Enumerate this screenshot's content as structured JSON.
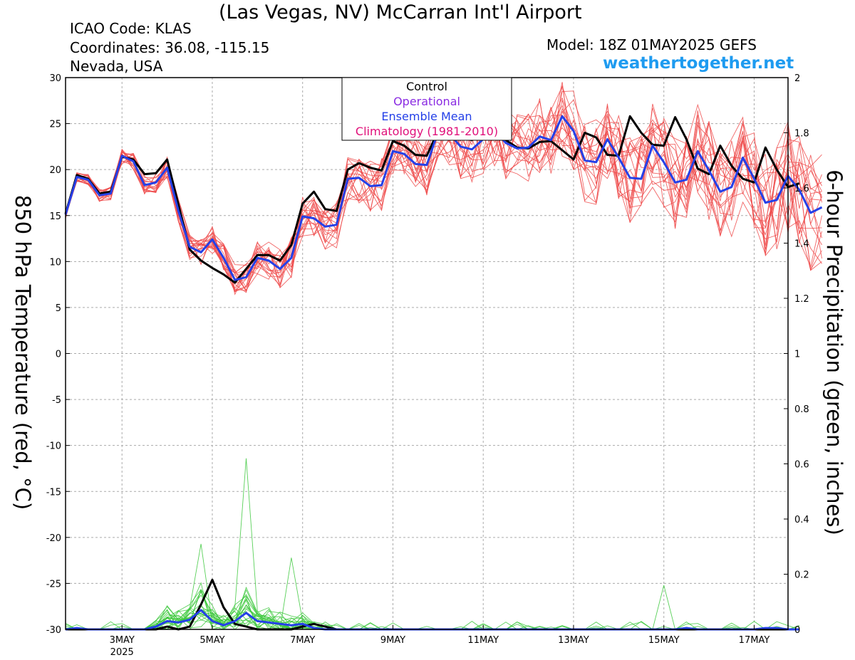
{
  "header": {
    "title": "(Las Vegas, NV) McCarran Int'l Airport",
    "icao": "ICAO Code: KLAS",
    "coordinates": "Coordinates: 36.08, -115.15",
    "region": "Nevada, USA",
    "model": "Model: 18Z 01MAY2025 GEFS",
    "website": "weathertogether.net"
  },
  "colors": {
    "members_temp": "#ef4a4a",
    "control": "#000000",
    "operational": "#8a2be2",
    "ensemble_mean": "#2440e8",
    "climatology": "#e0107a",
    "members_precip": "#3cc83c",
    "grid": "#aaaaaa"
  },
  "chart_data": {
    "type": "line",
    "x_unit": "6-hour steps from 18Z 01MAY2025",
    "x_ticks": [
      {
        "step": 5,
        "label": "3MAY",
        "sublabel": "2025"
      },
      {
        "step": 13,
        "label": "5MAY"
      },
      {
        "step": 21,
        "label": "7MAY"
      },
      {
        "step": 29,
        "label": "9MAY"
      },
      {
        "step": 37,
        "label": "11MAY"
      },
      {
        "step": 45,
        "label": "13MAY"
      },
      {
        "step": 53,
        "label": "15MAY"
      },
      {
        "step": 61,
        "label": "17MAY"
      }
    ],
    "xlim": [
      0,
      64
    ],
    "ylabel": "850 hPa Temperature (red, °C)",
    "ylim": [
      -30,
      30
    ],
    "yticks": [
      30,
      25,
      20,
      15,
      10,
      5,
      0,
      -5,
      -10,
      -15,
      -20,
      -25,
      -30
    ],
    "y2label": "6-hour Precipitation (green, inches)",
    "y2lim": [
      0,
      2
    ],
    "y2ticks": [
      2,
      1.8,
      1.6,
      1.4,
      1.2,
      1,
      0.8,
      0.6,
      0.4,
      0.2,
      0
    ],
    "legend": {
      "position": "top-center",
      "entries": [
        {
          "label": "Control",
          "color": "#000000"
        },
        {
          "label": "Operational",
          "color": "#8a2be2"
        },
        {
          "label": "Ensemble Mean",
          "color": "#2440e8"
        },
        {
          "label": "Climatology (1981-2010)",
          "color": "#e0107a"
        }
      ]
    },
    "grid": true,
    "series": [
      {
        "name": "Control",
        "axis": "temperature",
        "values": [
          15.2,
          19.4,
          19.0,
          17.4,
          17.6,
          21.4,
          21.1,
          19.5,
          19.6,
          21.1,
          16.2,
          11.3,
          10.1,
          9.3,
          8.6,
          7.7,
          9.2,
          10.7,
          10.7,
          10.1,
          11.8,
          16.3,
          17.6,
          15.7,
          15.5,
          20.0,
          20.7,
          20.2,
          19.9,
          23.1,
          22.6,
          21.6,
          21.5,
          24.2,
          23.8,
          23.5,
          23.2,
          24.1,
          24.6,
          23.2,
          22.4,
          22.3,
          23.0,
          23.1,
          22.1,
          21.1,
          24.0,
          23.5,
          21.6,
          21.5,
          25.8,
          24.0,
          22.7,
          22.6,
          25.7,
          23.3,
          20.1,
          19.5,
          22.6,
          20.4,
          19.0,
          18.6,
          22.4,
          20.0,
          18.1,
          18.5
        ]
      },
      {
        "name": "Ensemble Mean",
        "axis": "temperature",
        "values": [
          15.1,
          19.2,
          18.9,
          17.2,
          17.4,
          21.5,
          20.9,
          18.3,
          18.6,
          20.2,
          15.5,
          11.6,
          11.0,
          12.4,
          10.4,
          8.0,
          8.3,
          10.4,
          10.1,
          9.2,
          10.4,
          14.9,
          14.7,
          13.8,
          14.0,
          19.0,
          19.1,
          18.2,
          18.3,
          22.0,
          21.7,
          20.6,
          20.5,
          24.1,
          23.9,
          22.5,
          22.2,
          23.3,
          24.2,
          22.9,
          22.3,
          22.4,
          23.6,
          23.2,
          25.8,
          24.2,
          21.0,
          20.8,
          23.3,
          21.3,
          19.1,
          19.0,
          22.6,
          20.8,
          18.6,
          18.9,
          22.0,
          19.9,
          17.6,
          18.1,
          21.3,
          19.0,
          16.4,
          16.7,
          19.3,
          17.8,
          15.3,
          15.9
        ]
      },
      {
        "name": "Control",
        "axis": "precipitation",
        "values": [
          0,
          0,
          0,
          0,
          0,
          0,
          0,
          0,
          0,
          0.01,
          0,
          0.01,
          0.09,
          0.18,
          0.08,
          0.02,
          0.01,
          0,
          0,
          0,
          0,
          0.01,
          0.02,
          0.01,
          0,
          0,
          0,
          0,
          0,
          0,
          0,
          0,
          0,
          0,
          0,
          0,
          0,
          0,
          0,
          0,
          0,
          0,
          0,
          0,
          0,
          0,
          0,
          0,
          0,
          0,
          0,
          0,
          0,
          0,
          0,
          0,
          0,
          0,
          0,
          0,
          0,
          0,
          0,
          0,
          0,
          0
        ]
      },
      {
        "name": "Ensemble Mean",
        "axis": "precipitation",
        "values": [
          0,
          0.005,
          0,
          0,
          0,
          0,
          0,
          0,
          0.01,
          0.03,
          0.025,
          0.035,
          0.07,
          0.03,
          0.015,
          0.03,
          0.06,
          0.03,
          0.025,
          0.02,
          0.015,
          0.02,
          0.005,
          0,
          0,
          0,
          0,
          0,
          0,
          0,
          0,
          0,
          0,
          0,
          0,
          0,
          0,
          0,
          0,
          0,
          0,
          0,
          0,
          0,
          0,
          0,
          0,
          0,
          0,
          0,
          0,
          0,
          0,
          0,
          0,
          0.005,
          0,
          0,
          0,
          0,
          0,
          0,
          0.005,
          0.005,
          0,
          0
        ]
      }
    ]
  }
}
